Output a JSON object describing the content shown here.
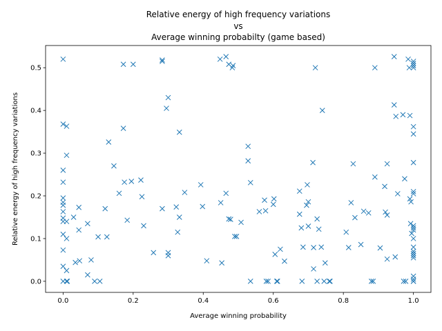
{
  "chart_data": {
    "type": "scatter",
    "title_lines": [
      "Relative energy of high frequency variations",
      "vs",
      "Average winning probabilty (game based)"
    ],
    "xlabel": "Average winning probability",
    "ylabel": "Relative energy of high frequency variations",
    "xlim": [
      -0.05,
      1.05
    ],
    "ylim": [
      -0.026,
      0.552
    ],
    "xticks": [
      0.0,
      0.2,
      0.4,
      0.6,
      0.8,
      1.0
    ],
    "xtick_labels": [
      "0.0",
      "0.2",
      "0.4",
      "0.6",
      "0.8",
      "1.0"
    ],
    "yticks": [
      0.0,
      0.1,
      0.2,
      0.3,
      0.4,
      0.5
    ],
    "ytick_labels": [
      "0.0",
      "0.1",
      "0.2",
      "0.3",
      "0.4",
      "0.5"
    ],
    "grid": false,
    "marker": "x",
    "marker_color": "#1f77b4",
    "points": [
      [
        0.0,
        0.52
      ],
      [
        0.0,
        0.368
      ],
      [
        0.01,
        0.363
      ],
      [
        0.01,
        0.295
      ],
      [
        0.0,
        0.26
      ],
      [
        0.0,
        0.232
      ],
      [
        0.0,
        0.195
      ],
      [
        0.0,
        0.185
      ],
      [
        0.0,
        0.178
      ],
      [
        0.0,
        0.163
      ],
      [
        0.0,
        0.148
      ],
      [
        0.0,
        0.14
      ],
      [
        0.01,
        0.14
      ],
      [
        0.0,
        0.11
      ],
      [
        0.01,
        0.1
      ],
      [
        0.0,
        0.073
      ],
      [
        0.0,
        0.035
      ],
      [
        0.01,
        0.025
      ],
      [
        0.0,
        0.0
      ],
      [
        0.01,
        0.0
      ],
      [
        0.012,
        0.0
      ],
      [
        0.03,
        0.15
      ],
      [
        0.045,
        0.173
      ],
      [
        0.045,
        0.12
      ],
      [
        0.035,
        0.044
      ],
      [
        0.047,
        0.048
      ],
      [
        0.07,
        0.135
      ],
      [
        0.07,
        0.015
      ],
      [
        0.08,
        0.05
      ],
      [
        0.09,
        0.0
      ],
      [
        0.1,
        0.104
      ],
      [
        0.105,
        0.0
      ],
      [
        0.12,
        0.17
      ],
      [
        0.125,
        0.104
      ],
      [
        0.13,
        0.326
      ],
      [
        0.145,
        0.27
      ],
      [
        0.16,
        0.206
      ],
      [
        0.172,
        0.508
      ],
      [
        0.172,
        0.358
      ],
      [
        0.175,
        0.232
      ],
      [
        0.183,
        0.143
      ],
      [
        0.195,
        0.234
      ],
      [
        0.2,
        0.508
      ],
      [
        0.222,
        0.237
      ],
      [
        0.225,
        0.198
      ],
      [
        0.23,
        0.13
      ],
      [
        0.258,
        0.067
      ],
      [
        0.283,
        0.518
      ],
      [
        0.283,
        0.515
      ],
      [
        0.283,
        0.17
      ],
      [
        0.295,
        0.405
      ],
      [
        0.3,
        0.43
      ],
      [
        0.3,
        0.067
      ],
      [
        0.3,
        0.06
      ],
      [
        0.323,
        0.174
      ],
      [
        0.327,
        0.115
      ],
      [
        0.332,
        0.349
      ],
      [
        0.332,
        0.15
      ],
      [
        0.347,
        0.208
      ],
      [
        0.393,
        0.226
      ],
      [
        0.398,
        0.175
      ],
      [
        0.41,
        0.048
      ],
      [
        0.448,
        0.52
      ],
      [
        0.45,
        0.184
      ],
      [
        0.453,
        0.043
      ],
      [
        0.465,
        0.526
      ],
      [
        0.465,
        0.206
      ],
      [
        0.473,
        0.508
      ],
      [
        0.473,
        0.146
      ],
      [
        0.478,
        0.145
      ],
      [
        0.483,
        0.5
      ],
      [
        0.485,
        0.505
      ],
      [
        0.49,
        0.105
      ],
      [
        0.495,
        0.105
      ],
      [
        0.508,
        0.138
      ],
      [
        0.528,
        0.316
      ],
      [
        0.528,
        0.282
      ],
      [
        0.535,
        0.231
      ],
      [
        0.535,
        0.0
      ],
      [
        0.56,
        0.163
      ],
      [
        0.575,
        0.19
      ],
      [
        0.578,
        0.165
      ],
      [
        0.58,
        0.0
      ],
      [
        0.585,
        0.0
      ],
      [
        0.6,
        0.18
      ],
      [
        0.602,
        0.193
      ],
      [
        0.605,
        0.063
      ],
      [
        0.61,
        0.0
      ],
      [
        0.612,
        0.0
      ],
      [
        0.62,
        0.075
      ],
      [
        0.632,
        0.047
      ],
      [
        0.675,
        0.211
      ],
      [
        0.675,
        0.157
      ],
      [
        0.68,
        0.125
      ],
      [
        0.682,
        0.0
      ],
      [
        0.685,
        0.08
      ],
      [
        0.695,
        0.178
      ],
      [
        0.697,
        0.226
      ],
      [
        0.7,
        0.186
      ],
      [
        0.7,
        0.129
      ],
      [
        0.713,
        0.278
      ],
      [
        0.715,
        0.079
      ],
      [
        0.715,
        0.029
      ],
      [
        0.72,
        0.5
      ],
      [
        0.725,
        0.146
      ],
      [
        0.725,
        0.0
      ],
      [
        0.73,
        0.122
      ],
      [
        0.737,
        0.08
      ],
      [
        0.74,
        0.4
      ],
      [
        0.745,
        0.0
      ],
      [
        0.748,
        0.043
      ],
      [
        0.76,
        0.0
      ],
      [
        0.762,
        0.0
      ],
      [
        0.808,
        0.115
      ],
      [
        0.815,
        0.079
      ],
      [
        0.822,
        0.184
      ],
      [
        0.828,
        0.275
      ],
      [
        0.833,
        0.149
      ],
      [
        0.85,
        0.086
      ],
      [
        0.858,
        0.164
      ],
      [
        0.872,
        0.16
      ],
      [
        0.88,
        0.0
      ],
      [
        0.885,
        0.0
      ],
      [
        0.89,
        0.5
      ],
      [
        0.89,
        0.244
      ],
      [
        0.905,
        0.078
      ],
      [
        0.918,
        0.222
      ],
      [
        0.92,
        0.162
      ],
      [
        0.925,
        0.155
      ],
      [
        0.925,
        0.275
      ],
      [
        0.925,
        0.052
      ],
      [
        0.945,
        0.526
      ],
      [
        0.945,
        0.413
      ],
      [
        0.948,
        0.057
      ],
      [
        0.95,
        0.386
      ],
      [
        0.955,
        0.205
      ],
      [
        0.97,
        0.39
      ],
      [
        0.972,
        0.0
      ],
      [
        0.975,
        0.24
      ],
      [
        0.978,
        0.0
      ],
      [
        0.985,
        0.52
      ],
      [
        0.988,
        0.5
      ],
      [
        0.99,
        0.388
      ],
      [
        0.99,
        0.193
      ],
      [
        0.993,
        0.186
      ],
      [
        0.992,
        0.135
      ],
      [
        0.995,
        0.112
      ],
      [
        1.0,
        0.515
      ],
      [
        1.0,
        0.51
      ],
      [
        1.0,
        0.505
      ],
      [
        1.0,
        0.5
      ],
      [
        1.0,
        0.362
      ],
      [
        1.0,
        0.345
      ],
      [
        1.0,
        0.278
      ],
      [
        1.0,
        0.21
      ],
      [
        1.0,
        0.205
      ],
      [
        1.0,
        0.13
      ],
      [
        1.0,
        0.125
      ],
      [
        1.0,
        0.12
      ],
      [
        1.0,
        0.1
      ],
      [
        1.0,
        0.08
      ],
      [
        1.0,
        0.07
      ],
      [
        1.0,
        0.065
      ],
      [
        1.0,
        0.06
      ],
      [
        1.0,
        0.055
      ],
      [
        1.0,
        0.012
      ],
      [
        1.0,
        0.005
      ],
      [
        1.0,
        0.0
      ],
      [
        1.0,
        0.0
      ]
    ]
  }
}
